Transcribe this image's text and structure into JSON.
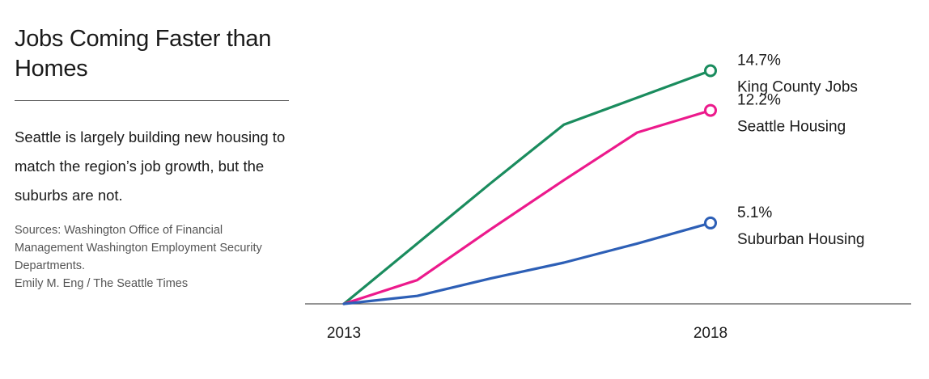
{
  "header": {
    "title": "Jobs Coming Faster than Homes",
    "subtitle": "Seattle is largely building new housing to match the region’s job growth, but the suburbs are not.",
    "sources": [
      "Sources: Washington Office of Financial Management Washington Employment Security Departments.",
      "Emily M. Eng / The Seattle Times"
    ]
  },
  "chart_data": {
    "type": "line",
    "x": [
      2013,
      2014,
      2015,
      2016,
      2017,
      2018
    ],
    "x_tick_labels": [
      "2013",
      "2018"
    ],
    "ylim": [
      0,
      16
    ],
    "grid": false,
    "legend": "direct labels at line ends (right)",
    "series": [
      {
        "name": "King County Jobs",
        "end_label": "14.7%",
        "color": "#1a8c5e",
        "values": [
          0,
          3.8,
          7.6,
          11.3,
          13.0,
          14.7
        ]
      },
      {
        "name": "Seattle Housing",
        "end_label": "12.2%",
        "color": "#ec1a8c",
        "values": [
          0,
          1.5,
          4.7,
          7.8,
          10.8,
          12.2
        ]
      },
      {
        "name": "Suburban Housing",
        "end_label": "5.1%",
        "color": "#2d5fb6",
        "values": [
          0,
          0.5,
          1.6,
          2.6,
          3.8,
          5.1
        ]
      }
    ]
  }
}
